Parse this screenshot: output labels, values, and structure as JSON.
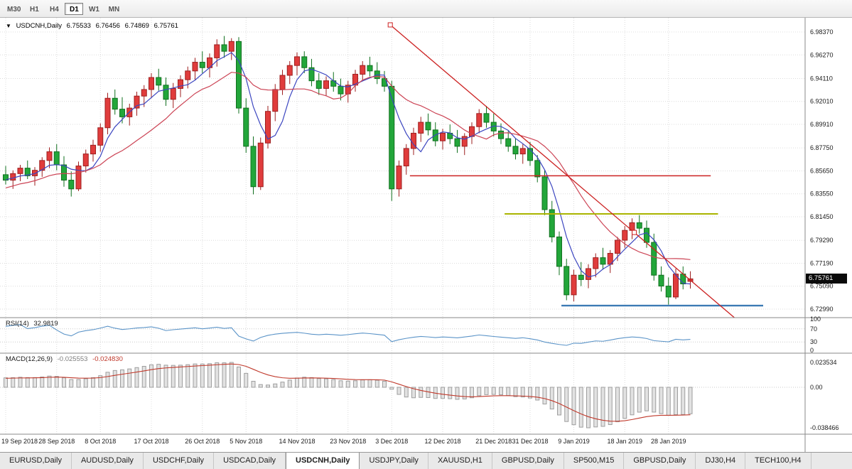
{
  "toolbar": {
    "timeframes": [
      {
        "label": "M30",
        "active": false
      },
      {
        "label": "H1",
        "active": false
      },
      {
        "label": "H4",
        "active": false
      },
      {
        "label": "D1",
        "active": true
      },
      {
        "label": "W1",
        "active": false
      },
      {
        "label": "MN",
        "active": false
      }
    ]
  },
  "quote": {
    "dropdown_icon": "▼",
    "symbol": "USDCNH,Daily",
    "open": "6.75533",
    "high": "6.76456",
    "low": "6.74869",
    "close": "6.75761"
  },
  "rsi_label": {
    "name": "RSI(14)",
    "value": "32.9819"
  },
  "macd_label": {
    "name": "MACD(12,26,9)",
    "main": "-0.025553",
    "signal": "-0.024830"
  },
  "tabs": [
    {
      "label": "EURUSD,Daily",
      "active": false
    },
    {
      "label": "AUDUSD,Daily",
      "active": false
    },
    {
      "label": "USDCHF,Daily",
      "active": false
    },
    {
      "label": "USDCAD,Daily",
      "active": false
    },
    {
      "label": "USDCNH,Daily",
      "active": true
    },
    {
      "label": "USDJPY,Daily",
      "active": false
    },
    {
      "label": "XAUUSD,H1",
      "active": false
    },
    {
      "label": "GBPUSD,Daily",
      "active": false
    },
    {
      "label": "SP500,M15",
      "active": false
    },
    {
      "label": "GBPUSD,Daily",
      "active": false
    },
    {
      "label": "DJ30,H4",
      "active": false
    },
    {
      "label": "TECH100,H4",
      "active": false
    }
  ],
  "colors": {
    "bull": "#e03c3c",
    "bull_border": "#9e1f1f",
    "bear": "#22a63a",
    "bear_border": "#11701f",
    "ma_fast": "#3c46c0",
    "ma_slow": "#cc4455",
    "hist_fill": "#e2e2e2",
    "hist_stroke": "#9e9e9e",
    "grid": "#dcdcdc",
    "separator": "#8a8a8a"
  },
  "chart_data": {
    "type": "candlestick",
    "symbol": "USDCNH",
    "timeframe": "Daily",
    "current_price": "6.75761",
    "ylim": [
      6.7221,
      6.9967
    ],
    "price_ticks": [
      "6.98370",
      "6.96270",
      "6.94110",
      "6.92010",
      "6.89910",
      "6.87750",
      "6.85650",
      "6.83550",
      "6.81450",
      "6.79290",
      "6.77190",
      "6.75090",
      "6.72990"
    ],
    "date_ticks": [
      {
        "label": "19 Sep 2018",
        "bar": 0
      },
      {
        "label": "28 Sep 2018",
        "bar": 7
      },
      {
        "label": "8 Oct 2018",
        "bar": 13
      },
      {
        "label": "17 Oct 2018",
        "bar": 20
      },
      {
        "label": "26 Oct 2018",
        "bar": 27
      },
      {
        "label": "5 Nov 2018",
        "bar": 33
      },
      {
        "label": "14 Nov 2018",
        "bar": 40
      },
      {
        "label": "23 Nov 2018",
        "bar": 47
      },
      {
        "label": "3 Dec 2018",
        "bar": 53
      },
      {
        "label": "12 Dec 2018",
        "bar": 60
      },
      {
        "label": "21 Dec 2018",
        "bar": 67
      },
      {
        "label": "31 Dec 2018",
        "bar": 72
      },
      {
        "label": "9 Jan 2019",
        "bar": 78
      },
      {
        "label": "18 Jan 2019",
        "bar": 85
      },
      {
        "label": "28 Jan 2019",
        "bar": 91
      }
    ],
    "ohlc": [
      [
        6.853,
        6.861,
        6.844,
        6.848
      ],
      [
        6.848,
        6.857,
        6.84,
        6.854
      ],
      [
        6.854,
        6.862,
        6.847,
        6.859
      ],
      [
        6.859,
        6.866,
        6.849,
        6.852
      ],
      [
        6.852,
        6.86,
        6.843,
        6.857
      ],
      [
        6.857,
        6.869,
        6.851,
        6.866
      ],
      [
        6.866,
        6.878,
        6.859,
        6.874
      ],
      [
        6.874,
        6.881,
        6.857,
        6.862
      ],
      [
        6.862,
        6.87,
        6.842,
        6.848
      ],
      [
        6.848,
        6.856,
        6.833,
        6.84
      ],
      [
        6.84,
        6.865,
        6.838,
        6.861
      ],
      [
        6.861,
        6.876,
        6.855,
        6.872
      ],
      [
        6.872,
        6.885,
        6.865,
        6.88
      ],
      [
        6.88,
        6.9,
        6.874,
        6.896
      ],
      [
        6.896,
        6.928,
        6.89,
        6.923
      ],
      [
        6.923,
        6.931,
        6.908,
        6.913
      ],
      [
        6.913,
        6.924,
        6.9,
        6.906
      ],
      [
        6.906,
        6.918,
        6.898,
        6.914
      ],
      [
        6.914,
        6.929,
        6.907,
        6.925
      ],
      [
        6.925,
        6.935,
        6.915,
        6.931
      ],
      [
        6.931,
        6.946,
        6.923,
        6.942
      ],
      [
        6.942,
        6.95,
        6.93,
        6.935
      ],
      [
        6.935,
        6.942,
        6.916,
        6.922
      ],
      [
        6.922,
        6.937,
        6.914,
        6.932
      ],
      [
        6.932,
        6.944,
        6.924,
        6.94
      ],
      [
        6.94,
        6.952,
        6.932,
        6.948
      ],
      [
        6.948,
        6.96,
        6.94,
        6.956
      ],
      [
        6.956,
        6.966,
        6.946,
        6.951
      ],
      [
        6.951,
        6.964,
        6.942,
        6.96
      ],
      [
        6.96,
        6.977,
        6.952,
        6.972
      ],
      [
        6.972,
        6.98,
        6.96,
        6.966
      ],
      [
        6.966,
        6.978,
        6.958,
        6.975
      ],
      [
        6.975,
        6.979,
        6.909,
        6.914
      ],
      [
        6.914,
        6.923,
        6.873,
        6.879
      ],
      [
        6.879,
        6.888,
        6.835,
        6.842
      ],
      [
        6.842,
        6.887,
        6.839,
        6.882
      ],
      [
        6.882,
        6.916,
        6.877,
        6.911
      ],
      [
        6.911,
        6.936,
        6.902,
        6.931
      ],
      [
        6.931,
        6.949,
        6.926,
        6.944
      ],
      [
        6.944,
        6.957,
        6.936,
        6.953
      ],
      [
        6.953,
        6.965,
        6.944,
        6.961
      ],
      [
        6.961,
        6.966,
        6.946,
        6.951
      ],
      [
        6.951,
        6.959,
        6.934,
        6.939
      ],
      [
        6.939,
        6.946,
        6.926,
        6.932
      ],
      [
        6.932,
        6.943,
        6.925,
        6.939
      ],
      [
        6.939,
        6.947,
        6.929,
        6.934
      ],
      [
        6.934,
        6.941,
        6.921,
        6.927
      ],
      [
        6.927,
        6.939,
        6.919,
        6.935
      ],
      [
        6.935,
        6.949,
        6.929,
        6.945
      ],
      [
        6.945,
        6.957,
        6.939,
        6.953
      ],
      [
        6.953,
        6.961,
        6.943,
        6.948
      ],
      [
        6.948,
        6.956,
        6.936,
        6.941
      ],
      [
        6.941,
        6.948,
        6.929,
        6.934
      ],
      [
        6.934,
        6.939,
        6.829,
        6.84
      ],
      [
        6.84,
        6.866,
        6.833,
        6.861
      ],
      [
        6.861,
        6.881,
        6.853,
        6.877
      ],
      [
        6.877,
        6.896,
        6.871,
        6.891
      ],
      [
        6.891,
        6.906,
        6.883,
        6.901
      ],
      [
        6.901,
        6.909,
        6.889,
        6.894
      ],
      [
        6.894,
        6.901,
        6.879,
        6.884
      ],
      [
        6.884,
        6.895,
        6.876,
        6.891
      ],
      [
        6.891,
        6.899,
        6.881,
        6.886
      ],
      [
        6.886,
        6.894,
        6.873,
        6.879
      ],
      [
        6.879,
        6.891,
        6.871,
        6.888
      ],
      [
        6.888,
        6.901,
        6.881,
        6.897
      ],
      [
        6.897,
        6.913,
        6.891,
        6.909
      ],
      [
        6.909,
        6.916,
        6.896,
        6.901
      ],
      [
        6.901,
        6.909,
        6.888,
        6.893
      ],
      [
        6.893,
        6.9,
        6.881,
        6.886
      ],
      [
        6.886,
        6.893,
        6.874,
        6.879
      ],
      [
        6.879,
        6.886,
        6.867,
        6.872
      ],
      [
        6.872,
        6.881,
        6.863,
        6.877
      ],
      [
        6.877,
        6.883,
        6.861,
        6.866
      ],
      [
        6.866,
        6.871,
        6.846,
        6.851
      ],
      [
        6.851,
        6.857,
        6.816,
        6.821
      ],
      [
        6.821,
        6.829,
        6.791,
        6.796
      ],
      [
        6.796,
        6.801,
        6.761,
        6.769
      ],
      [
        6.769,
        6.776,
        6.738,
        6.743
      ],
      [
        6.743,
        6.766,
        6.737,
        6.761
      ],
      [
        6.761,
        6.773,
        6.751,
        6.757
      ],
      [
        6.757,
        6.771,
        6.749,
        6.767
      ],
      [
        6.767,
        6.781,
        6.759,
        6.777
      ],
      [
        6.777,
        6.786,
        6.766,
        6.771
      ],
      [
        6.771,
        6.784,
        6.763,
        6.781
      ],
      [
        6.781,
        6.796,
        6.774,
        6.793
      ],
      [
        6.793,
        6.806,
        6.786,
        6.802
      ],
      [
        6.802,
        6.813,
        6.794,
        6.809
      ],
      [
        6.809,
        6.816,
        6.799,
        6.804
      ],
      [
        6.804,
        6.811,
        6.786,
        6.791
      ],
      [
        6.791,
        6.799,
        6.756,
        6.761
      ],
      [
        6.761,
        6.769,
        6.746,
        6.751
      ],
      [
        6.751,
        6.759,
        6.734,
        6.741
      ],
      [
        6.741,
        6.767,
        6.739,
        6.762
      ],
      [
        6.762,
        6.769,
        6.748,
        6.753
      ],
      [
        6.75533,
        6.76456,
        6.74869,
        6.75761
      ]
    ],
    "overlays": {
      "ma_fast": {
        "type": "sma",
        "period": 5,
        "color": "#3c46c0"
      },
      "ma_slow": {
        "type": "sma",
        "period": 14,
        "color": "#cc4455"
      },
      "trendline": {
        "color": "#cc2222",
        "ray": true,
        "anchors": [
          {
            "bar": 52.8,
            "price": 6.9902
          },
          {
            "bar": 86.3,
            "price": 6.8001
          }
        ]
      },
      "hlines": [
        {
          "price": 6.852,
          "bar1": 55.5,
          "bar2": 96.8,
          "color": "#cc2222",
          "width": 1.4
        },
        {
          "price": 6.8171,
          "bar1": 68.5,
          "bar2": 97.8,
          "color": "#aab400",
          "width": 2
        },
        {
          "price": 6.7331,
          "bar1": 76.3,
          "bar2": 104.0,
          "color": "#3c7ab4",
          "width": 2.4
        }
      ]
    },
    "indicators": {
      "rsi": {
        "period": 14,
        "current": "32.9819",
        "levels": [
          100,
          70,
          30,
          0
        ],
        "color": "#5b94c8"
      },
      "macd": {
        "fast": 12,
        "slow": 26,
        "signal": 9,
        "main": "-0.025553",
        "signal_value": "-0.024830",
        "axis_labels": [
          "0.023534",
          "0.00",
          "-0.038466"
        ],
        "signal_color": "#c0392b"
      }
    }
  }
}
